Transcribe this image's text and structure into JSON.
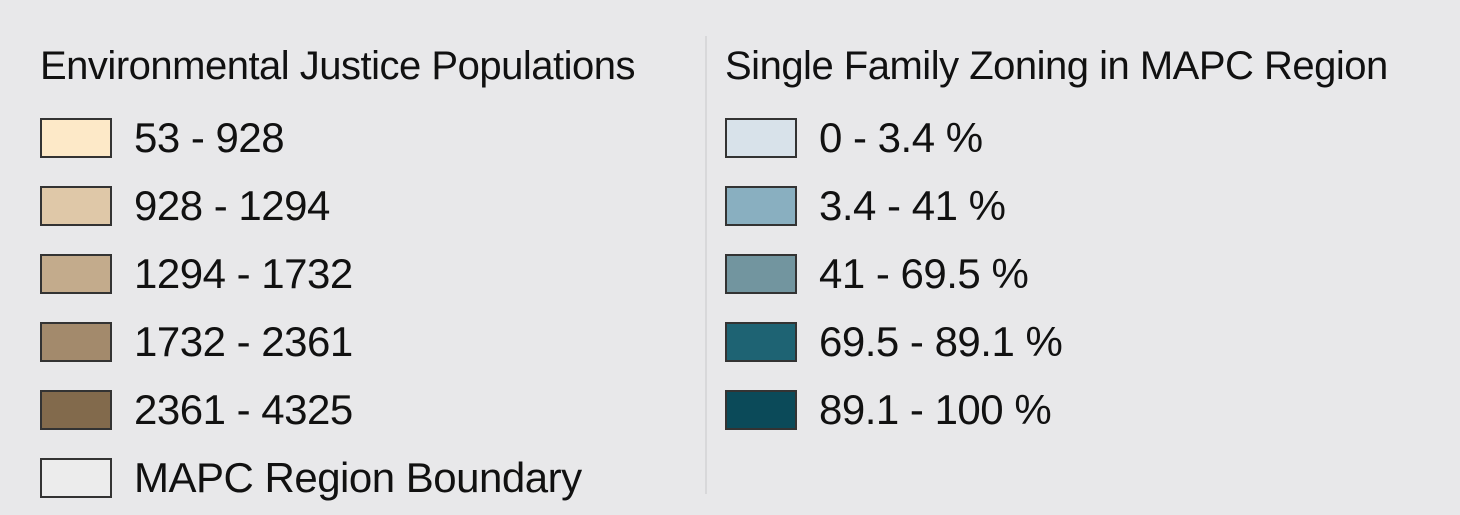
{
  "ej_legend": {
    "title": "Environmental Justice Populations",
    "items": [
      {
        "label": "53 - 928",
        "color": "#fde9c8"
      },
      {
        "label": "928 - 1294",
        "color": "#dfc8a8"
      },
      {
        "label": "1294 - 1732",
        "color": "#c3ab8c"
      },
      {
        "label": "1732 - 2361",
        "color": "#a38a6c"
      },
      {
        "label": "2361 - 4325",
        "color": "#826a4c"
      },
      {
        "label": "MAPC Region Boundary",
        "color": "#ececec"
      }
    ]
  },
  "sfz_legend": {
    "title": "Single Family Zoning in MAPC Region",
    "items": [
      {
        "label": "0 - 3.4 %",
        "color": "#d8e2ea"
      },
      {
        "label": "3.4 - 41 %",
        "color": "#89afc0"
      },
      {
        "label": "41 - 69.5 %",
        "color": "#72959f"
      },
      {
        "label": "69.5 - 89.1 %",
        "color": "#1e6373"
      },
      {
        "label": "89.1 - 100 %",
        "color": "#0b4a59"
      }
    ]
  }
}
